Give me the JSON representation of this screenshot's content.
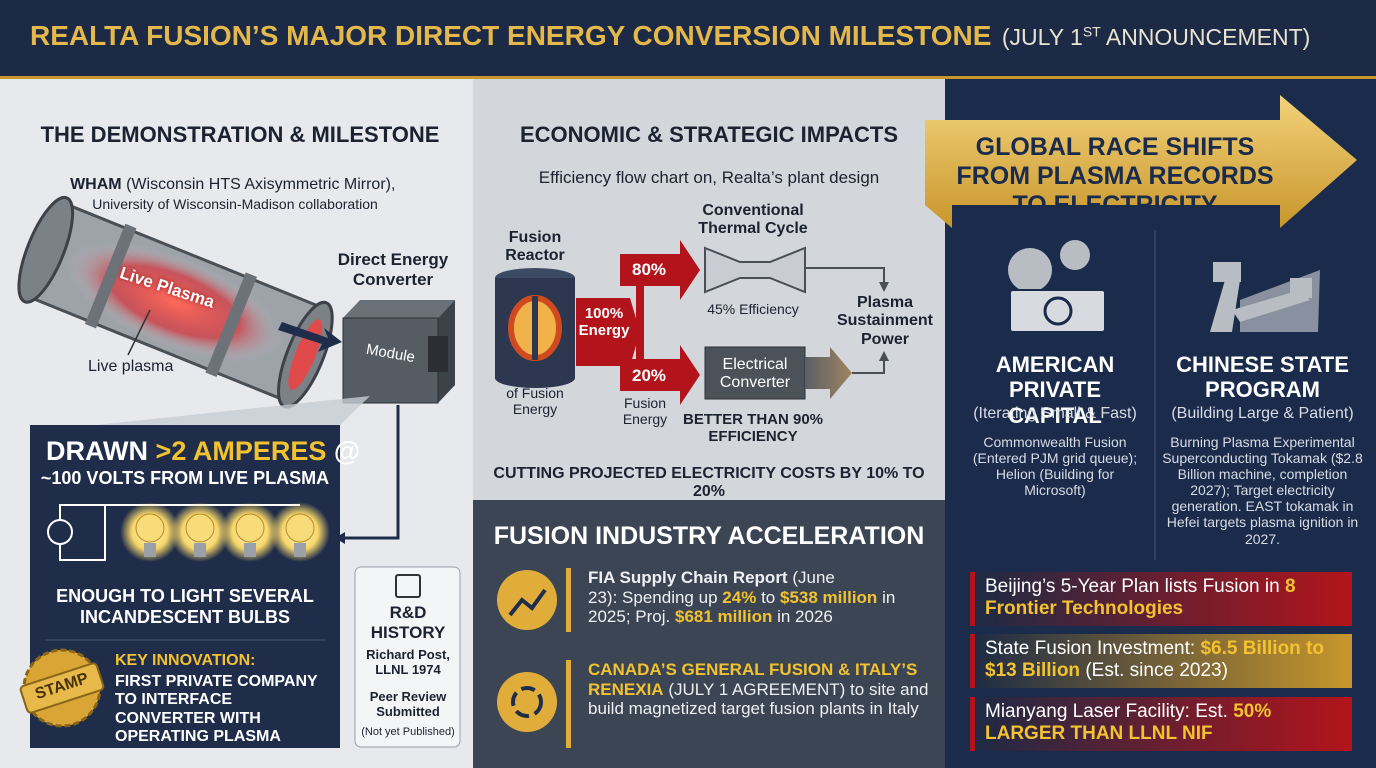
{
  "header": {
    "title": "REALTA FUSION’S MAJOR DIRECT ENERGY CONVERSION MILESTONE",
    "date_open": "(JULY 1",
    "date_sup": "ST",
    "date_close": "ANNOUNCEMENT)"
  },
  "demonstration": {
    "heading": "THE DEMONSTRATION & MILESTONE",
    "device": [
      {
        "text": "WHAM",
        "style": "bold"
      },
      {
        "text": "(Wisconsin HTS Axisymmetric Mirror),",
        "style": "plain"
      }
    ],
    "collaboration": "University of Wisconsin-Madison collaboration",
    "plasma_label": "Live Plasma",
    "plasma_caption": "Live plasma",
    "converter_label": "Direct Energy Converter",
    "module_label": "Module",
    "result": [
      {
        "text": "DRAWN",
        "style": "plain"
      },
      {
        "text": ">2 AMPERES",
        "style": "gold"
      },
      {
        "text": "@",
        "style": "plain"
      }
    ],
    "volts": "~100 VOLTS FROM LIVE PLASMA",
    "bulbs": "ENOUGH TO LIGHT SEVERAL INCANDESCENT BULBS",
    "stamp": "STAMP",
    "innovation_heading": "KEY INNOVATION:",
    "innovation_text": "FIRST PRIVATE COMPANY TO INTERFACE CONVERTER WITH OPERATING PLASMA",
    "history": {
      "heading": "R&D HISTORY",
      "person": "Richard Post, LLNL 1974",
      "review": "Peer Review Submitted",
      "note": "(Not yet Published)"
    }
  },
  "economics": {
    "heading": "ECONOMIC & STRATEGIC IMPACTS",
    "subtitle": "Efficiency flow chart on, Realta’s plant design",
    "reactor": "Fusion Reactor",
    "reactor_caption": "of Fusion Energy",
    "input": "100% Energy",
    "thermal_share": "80%",
    "thermal_label": "Conventional Thermal Cycle",
    "thermal_efficiency": "45% Efficiency",
    "direct_share": "20%",
    "direct_caption": "Fusion Energy",
    "converter": "Electrical Converter",
    "converter_efficiency": "BETTER THAN 90% EFFICIENCY",
    "output": "Plasma Sustainment Power",
    "conclusion": "CUTTING PROJECTED ELECTRICITY COSTS BY 10% TO 20%"
  },
  "acceleration": {
    "heading": "FUSION INDUSTRY ACCELERATION",
    "items": [
      [
        {
          "text": "FIA Supply Chain Report",
          "style": "bold"
        },
        {
          "text": "(June 23):",
          "style": "plain"
        },
        {
          "text": "Spending up",
          "style": "plain"
        },
        {
          "text": "24%",
          "style": "gold"
        },
        {
          "text": "to",
          "style": "plain"
        },
        {
          "text": "$538 million",
          "style": "gold"
        },
        {
          "text": "in 2025;",
          "style": "plain"
        },
        {
          "text": "Proj.",
          "style": "plain"
        },
        {
          "text": "$681 million",
          "style": "gold"
        },
        {
          "text": "in 2026",
          "style": "plain"
        }
      ],
      [
        {
          "text": "CANADA’S GENERAL FUSION & ITALY’S RENEXIA",
          "style": "gold"
        },
        {
          "text": "(JULY 1 AGREEMENT)",
          "style": "plain"
        },
        {
          "text": "to site and build magnetized target fusion plants in Italy",
          "style": "plain"
        }
      ]
    ]
  },
  "global": {
    "banner": "GLOBAL RACE SHIFTS FROM PLASMA RECORDS TO ELECTRICITY",
    "columns": [
      {
        "title": "AMERICAN PRIVATE CAPITAL",
        "subtitle": "(Iterating Small & Fast)",
        "text": "Commonwealth Fusion (Entered PJM grid queue); Helion (Building for Microsoft)"
      },
      {
        "title": "CHINESE STATE PROGRAM",
        "subtitle": "(Building Large & Patient)",
        "text": "Burning Plasma Experimental Superconducting Tokamak ($2.8 Billion machine, completion 2027); Target electricity generation. EAST tokamak in Hefei targets plasma ignition in 2027."
      }
    ],
    "facts": [
      [
        {
          "text": "Beijing’s 5-Year Plan lists Fusion in",
          "style": "plain"
        },
        {
          "text": "8 Frontier Technologies",
          "style": "gold"
        }
      ],
      [
        {
          "text": "State Fusion Investment:",
          "style": "plain"
        },
        {
          "text": "$6.5 Billion to $13 Billion",
          "style": "gold"
        },
        {
          "text": "(Est. since 2023)",
          "style": "plain"
        }
      ],
      [
        {
          "text": "Mianyang Laser Facility:",
          "style": "plain"
        },
        {
          "text": "Est.",
          "style": "plain"
        },
        {
          "text": "50% LARGER THAN LLNL NIF",
          "style": "gold"
        }
      ]
    ]
  }
}
